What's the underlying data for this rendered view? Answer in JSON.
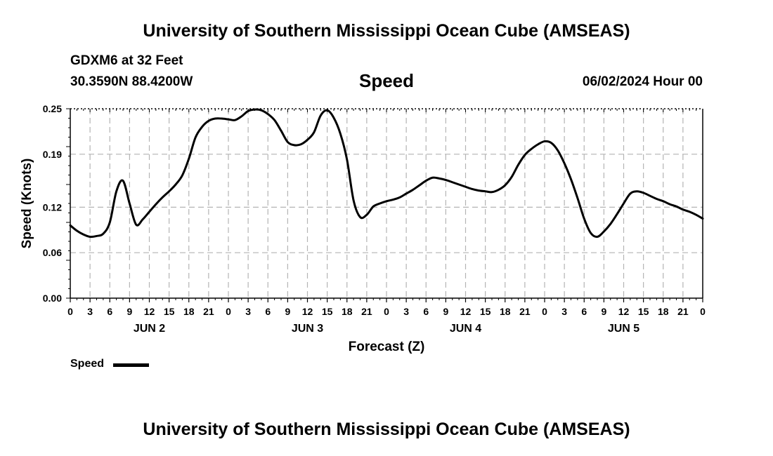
{
  "header": {
    "title": "University of Southern Mississippi Ocean Cube (AMSEAS)",
    "station": "GDXM6 at 32 Feet",
    "coords": "30.3590N  88.4200W",
    "variable": "Speed",
    "date": "06/02/2024 Hour 00"
  },
  "footer": {
    "title": "University of Southern Mississippi Ocean Cube (AMSEAS)"
  },
  "legend": {
    "label": "Speed",
    "color": "#000000"
  },
  "chart_data": {
    "type": "line",
    "xlabel": "Forecast (Z)",
    "ylabel": "Speed (Knots)",
    "xlim": [
      0,
      96
    ],
    "ylim": [
      0,
      0.25
    ],
    "yticks": [
      0.0,
      0.06,
      0.12,
      0.19,
      0.25
    ],
    "ytick_labels": [
      "0.00",
      "0.06",
      "0.12",
      "0.19",
      "0.25"
    ],
    "xtick_hours": [
      0,
      3,
      6,
      9,
      12,
      15,
      18,
      21,
      24,
      27,
      30,
      33,
      36,
      39,
      42,
      45,
      48,
      51,
      54,
      57,
      60,
      63,
      66,
      69,
      72,
      75,
      78,
      81,
      84,
      87,
      90,
      93,
      96
    ],
    "xtick_labels": [
      "0",
      "3",
      "6",
      "9",
      "12",
      "15",
      "18",
      "21",
      "0",
      "3",
      "6",
      "9",
      "12",
      "15",
      "18",
      "21",
      "0",
      "3",
      "6",
      "9",
      "12",
      "15",
      "18",
      "21",
      "0",
      "3",
      "6",
      "9",
      "12",
      "15",
      "18",
      "21",
      "0"
    ],
    "day_labels": [
      {
        "label": "JUN 2",
        "hour": 12
      },
      {
        "label": "JUN 3",
        "hour": 36
      },
      {
        "label": "JUN 4",
        "hour": 60
      },
      {
        "label": "JUN 5",
        "hour": 84
      }
    ],
    "grid": true,
    "legend_position": "bottom-left",
    "series": [
      {
        "name": "Speed",
        "color": "#000000",
        "x": [
          0,
          1,
          2,
          3,
          4,
          5,
          6,
          7,
          8,
          9,
          10,
          11,
          12,
          13,
          14,
          15,
          16,
          17,
          18,
          19,
          20,
          21,
          22,
          23,
          24,
          25,
          26,
          27,
          28,
          29,
          30,
          31,
          32,
          33,
          34,
          35,
          36,
          37,
          38,
          39,
          40,
          41,
          42,
          43,
          44,
          45,
          46,
          47,
          48,
          49,
          50,
          51,
          52,
          53,
          54,
          55,
          56,
          57,
          58,
          59,
          60,
          61,
          62,
          63,
          64,
          65,
          66,
          67,
          68,
          69,
          70,
          71,
          72,
          73,
          74,
          75,
          76,
          77,
          78,
          79,
          80,
          81,
          82,
          83,
          84,
          85,
          86,
          87,
          88,
          89,
          90,
          91,
          92,
          93,
          94,
          95,
          96
        ],
        "values": [
          0.096,
          0.089,
          0.084,
          0.081,
          0.082,
          0.085,
          0.1,
          0.141,
          0.155,
          0.125,
          0.097,
          0.104,
          0.114,
          0.124,
          0.133,
          0.141,
          0.15,
          0.162,
          0.184,
          0.212,
          0.226,
          0.234,
          0.237,
          0.237,
          0.236,
          0.235,
          0.24,
          0.247,
          0.249,
          0.248,
          0.243,
          0.235,
          0.221,
          0.206,
          0.202,
          0.203,
          0.209,
          0.219,
          0.241,
          0.248,
          0.238,
          0.217,
          0.183,
          0.129,
          0.107,
          0.11,
          0.121,
          0.125,
          0.128,
          0.13,
          0.133,
          0.138,
          0.143,
          0.149,
          0.155,
          0.159,
          0.158,
          0.156,
          0.153,
          0.15,
          0.147,
          0.144,
          0.142,
          0.141,
          0.14,
          0.143,
          0.149,
          0.16,
          0.176,
          0.189,
          0.197,
          0.203,
          0.207,
          0.205,
          0.195,
          0.178,
          0.157,
          0.132,
          0.105,
          0.086,
          0.081,
          0.088,
          0.098,
          0.111,
          0.125,
          0.138,
          0.141,
          0.139,
          0.135,
          0.131,
          0.128,
          0.124,
          0.121,
          0.117,
          0.114,
          0.11,
          0.105
        ]
      }
    ]
  }
}
